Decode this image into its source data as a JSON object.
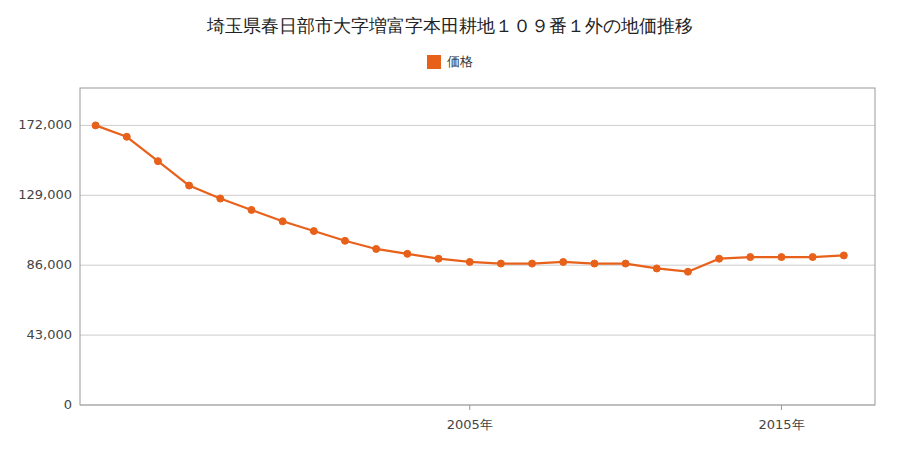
{
  "chart_data": {
    "type": "line",
    "title": "埼玉県春日部市大字増富字本田耕地１０９番１外の地価推移",
    "x": [
      1993,
      1994,
      1995,
      1996,
      1997,
      1998,
      1999,
      2000,
      2001,
      2002,
      2003,
      2004,
      2005,
      2006,
      2007,
      2008,
      2009,
      2010,
      2011,
      2012,
      2013,
      2014,
      2015,
      2016,
      2017
    ],
    "series": [
      {
        "name": "価格",
        "color": "#e8611a",
        "marker": "circle",
        "line_style": "solid",
        "values": [
          172000,
          165000,
          150000,
          135000,
          127000,
          120000,
          113000,
          107000,
          101000,
          96000,
          93000,
          90000,
          88000,
          87000,
          87000,
          88000,
          87000,
          87000,
          84000,
          82000,
          90000,
          91000,
          91000,
          91000,
          92000
        ]
      }
    ],
    "xlim": [
      1992.5,
      2018
    ],
    "xticks": [
      {
        "value": 2005,
        "label": "2005年"
      },
      {
        "value": 2015,
        "label": "2015年"
      }
    ],
    "ylim": [
      0,
      195000
    ],
    "yticks": [
      0,
      {
        "value": 43000,
        "label": "43,000"
      },
      {
        "value": 86000,
        "label": "86,000"
      },
      {
        "value": 129000,
        "label": "129,000"
      },
      {
        "value": 172000,
        "label": "172,000"
      }
    ],
    "grid": true,
    "legend": "top"
  }
}
